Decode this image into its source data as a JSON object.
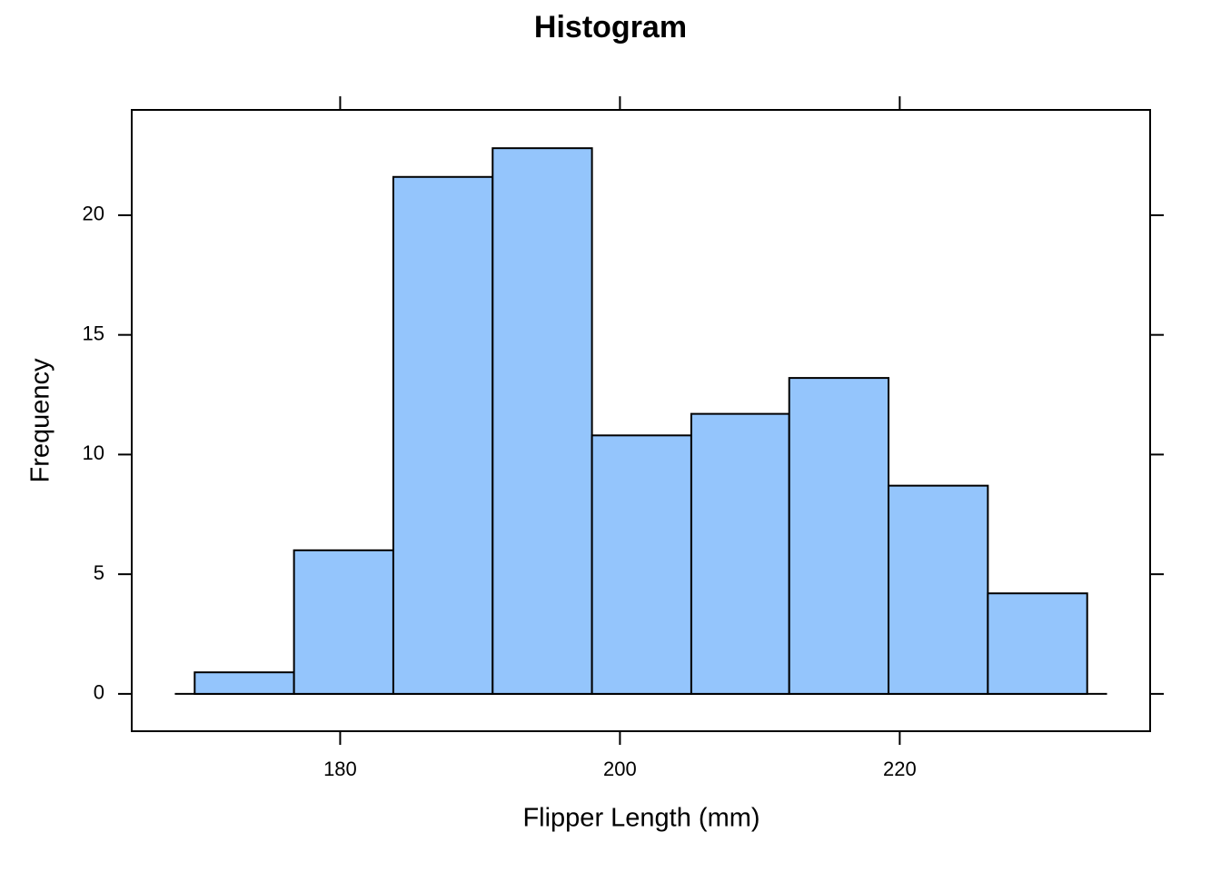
{
  "chart_data": {
    "type": "histogram",
    "title": "Histogram",
    "x_label": "Flipper Length (mm)",
    "y_label": "Frequency",
    "bins": [
      169.6,
      176.7,
      183.8,
      190.9,
      198.0,
      205.1,
      212.1,
      219.2,
      226.3,
      233.4
    ],
    "values": [
      0.9,
      6.0,
      21.6,
      22.8,
      10.8,
      11.7,
      13.2,
      8.7,
      4.2
    ],
    "color": "#94c5fc",
    "xlim": [
      165.1,
      237.9
    ],
    "ylim": [
      -1.56,
      24.4
    ],
    "xticks": [
      180,
      200,
      220
    ],
    "yticks": [
      0,
      5,
      10,
      15,
      20
    ]
  }
}
